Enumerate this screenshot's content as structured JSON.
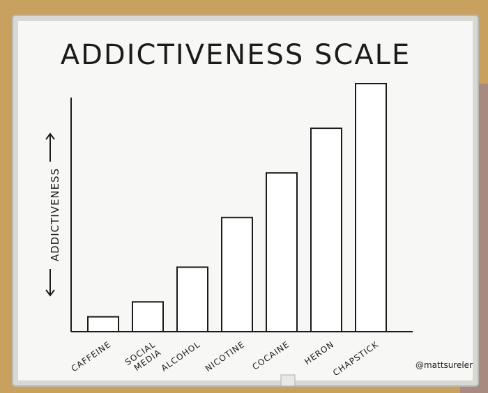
{
  "chart_data": {
    "type": "bar",
    "title": "ADDICTIVENESS SCALE",
    "ylabel": "ADDICTIVENESS",
    "xlabel": "",
    "categories": [
      "CAFFEINE",
      "SOCIAL MEDIA",
      "ALCOHOL",
      "NICOTINE",
      "COCAINE",
      "HERON",
      "CHAPSTICK"
    ],
    "values": [
      6,
      12,
      26,
      46,
      64,
      82,
      100
    ],
    "ylim": [
      0,
      100
    ],
    "grid": false,
    "bar_fill": "#ffffff",
    "bar_stroke": "#1b1b1b"
  },
  "signature": "@mattsureler",
  "colors": {
    "board": "#f7f7f5",
    "frame": "#d8d8d4",
    "cork": "#c9a15f",
    "ink": "#1b1b1b"
  }
}
